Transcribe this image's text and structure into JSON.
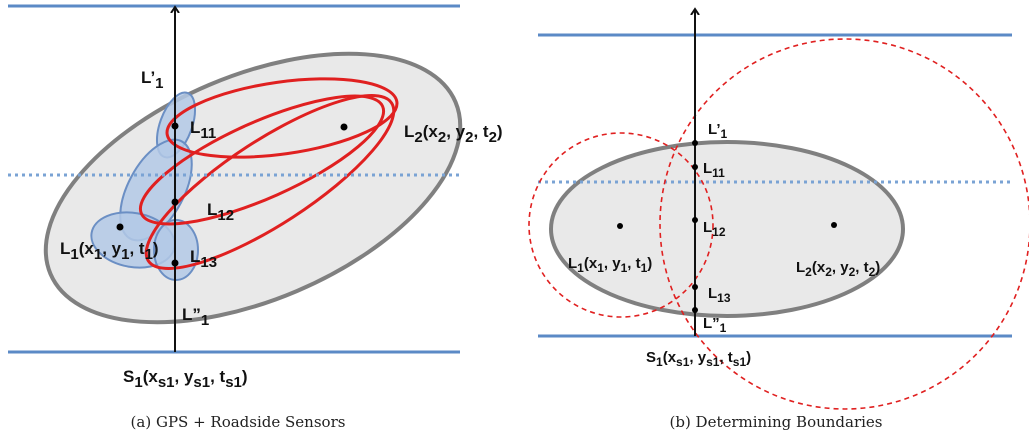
{
  "panel_a": {
    "caption": "(a) GPS + Roadside Sensors",
    "L1prime": {
      "base": "L’",
      "sub": "1"
    },
    "L11": {
      "base": "L",
      "sub": "11"
    },
    "L12": {
      "base": "L",
      "sub": "12"
    },
    "L13": {
      "base": "L",
      "sub": "13"
    },
    "L1pp": {
      "base": "L”",
      "sub": "1"
    },
    "L1": {
      "parts": [
        "L",
        "1",
        "(x",
        "1",
        ", y",
        "1",
        ", t",
        "1",
        ")"
      ]
    },
    "L2": {
      "parts": [
        "L",
        "2",
        "(x",
        "2",
        ", y",
        "2",
        ", t",
        "2",
        ")"
      ]
    },
    "S1": {
      "parts": [
        "S",
        "1",
        "(x",
        "s1",
        ", y",
        "s1",
        ", t",
        "s1",
        ")"
      ]
    }
  },
  "panel_b": {
    "caption": "(b) Determining Boundaries",
    "L1prime": {
      "base": "L’",
      "sub": "1"
    },
    "L11": {
      "base": "L",
      "sub": "11"
    },
    "L12": {
      "base": "L",
      "sub": "12"
    },
    "L13": {
      "base": "L",
      "sub": "13"
    },
    "L1pp": {
      "base": "L”",
      "sub": "1"
    },
    "L1": {
      "parts": [
        "L",
        "1",
        "(x",
        "1",
        ", y",
        "1",
        ", t",
        "1",
        ")"
      ]
    },
    "L2": {
      "parts": [
        "L",
        "2",
        "(x",
        "2",
        ", y",
        "2",
        ", t",
        "2",
        ")"
      ]
    },
    "S1": {
      "parts": [
        "S",
        "1",
        "(x",
        "s1",
        ", y",
        "s1",
        ", t",
        "s1",
        ")"
      ]
    }
  },
  "colors": {
    "road": "#5b8ac6",
    "ellipse_fill": "#e9e9e9",
    "ellipse_stroke": "#808080",
    "blue_fill": "#b3c9e6",
    "blue_stroke": "#6b8fc4",
    "red": "#e02020"
  }
}
